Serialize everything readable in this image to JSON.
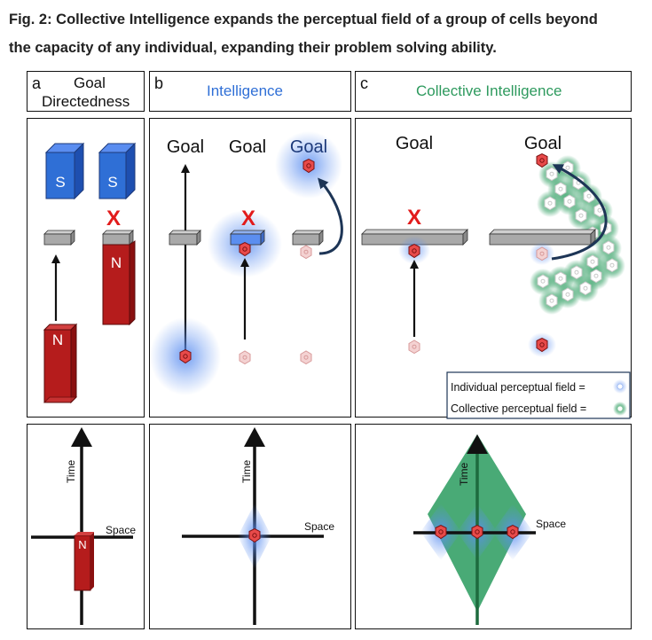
{
  "caption": {
    "line1": "Fig. 2: Collective Intelligence expands the perceptual field of a group of cells beyond",
    "line2": "the capacity of any individual, expanding their problem solving ability."
  },
  "panels": {
    "a": {
      "letter": "a",
      "title_line1": "Goal",
      "title_line2": "Directedness"
    },
    "b": {
      "letter": "b",
      "title": "Intelligence",
      "title_color": "#2f6fd6"
    },
    "c": {
      "letter": "c",
      "title": "Collective Intelligence",
      "title_color": "#2e9a5e"
    }
  },
  "labels": {
    "goal": "Goal",
    "magnet_s": "S",
    "magnet_n": "N",
    "x_mark": "X",
    "time": "Time",
    "space": "Space"
  },
  "legend": {
    "individual": "Individual perceptual field =",
    "collective": "Collective perceptual field ="
  },
  "colors": {
    "magnet_blue": "#2f6fd6",
    "magnet_red": "#b51c1c",
    "x_red": "#e21b1b",
    "field_blue": "#5b8ef0",
    "field_green": "#3aa36a",
    "arrow_navy": "#1d3556",
    "barrier_gray": "#a9a9a9"
  }
}
